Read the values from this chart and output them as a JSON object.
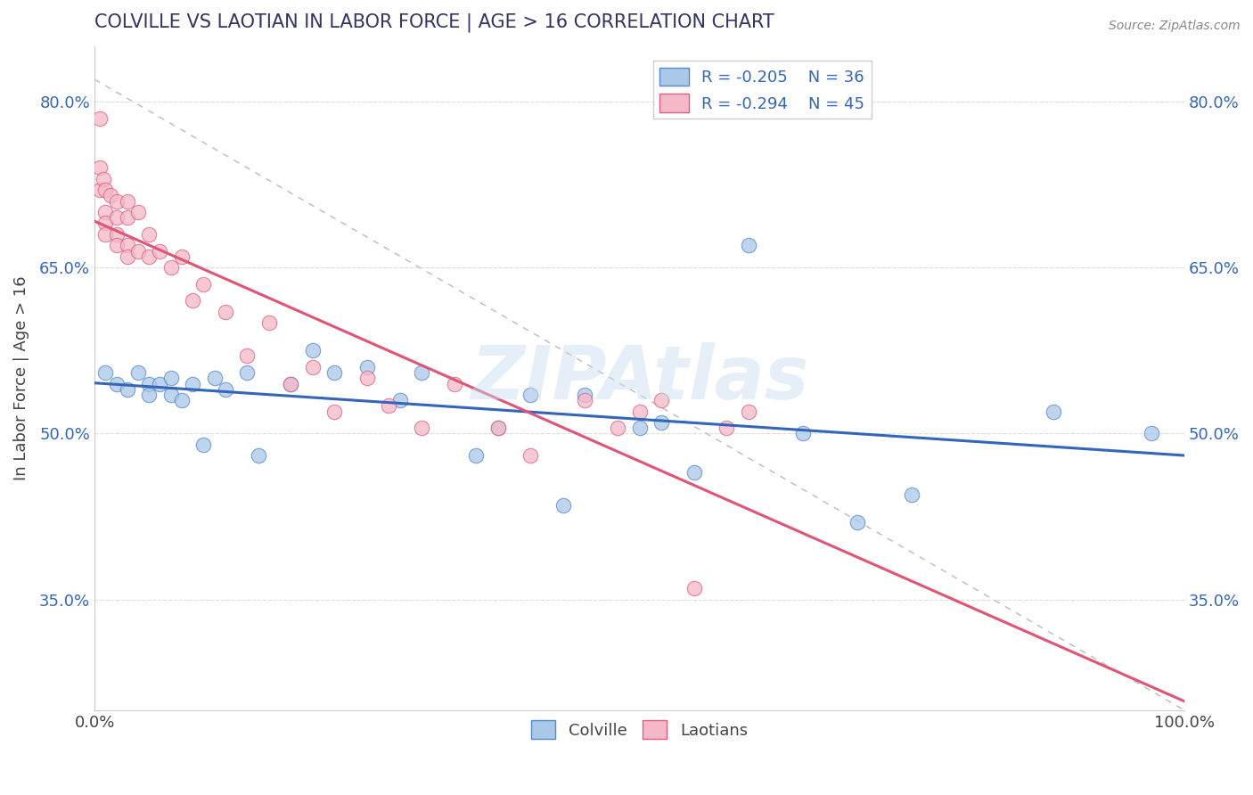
{
  "title": "COLVILLE VS LAOTIAN IN LABOR FORCE | AGE > 16 CORRELATION CHART",
  "source_text": "Source: ZipAtlas.com",
  "ylabel": "In Labor Force | Age > 16",
  "xlim": [
    0.0,
    1.0
  ],
  "ylim": [
    0.25,
    0.85
  ],
  "yticks": [
    0.35,
    0.5,
    0.65,
    0.8
  ],
  "ytick_labels": [
    "35.0%",
    "50.0%",
    "65.0%",
    "80.0%"
  ],
  "xticks": [
    0.0,
    1.0
  ],
  "xtick_labels": [
    "0.0%",
    "100.0%"
  ],
  "colville_fill": "#aac8e8",
  "laotian_fill": "#f5b8c8",
  "colville_edge": "#5588cc",
  "laotian_edge": "#e06080",
  "colville_line_color": "#3366bb",
  "laotian_line_color": "#e05575",
  "legend_R_colville": "R = -0.205",
  "legend_N_colville": "N = 36",
  "legend_R_laotian": "R = -0.294",
  "legend_N_laotian": "N = 45",
  "watermark": "ZIPAtlas",
  "title_color": "#333366",
  "grid_color": "#dddddd",
  "ref_line_color": "#bbbbbb",
  "colville_x": [
    0.01,
    0.02,
    0.03,
    0.04,
    0.05,
    0.05,
    0.06,
    0.07,
    0.07,
    0.08,
    0.09,
    0.1,
    0.11,
    0.12,
    0.14,
    0.15,
    0.18,
    0.2,
    0.22,
    0.25,
    0.28,
    0.3,
    0.35,
    0.37,
    0.4,
    0.43,
    0.45,
    0.5,
    0.52,
    0.55,
    0.6,
    0.65,
    0.7,
    0.75,
    0.88,
    0.97
  ],
  "colville_y": [
    0.555,
    0.545,
    0.54,
    0.555,
    0.545,
    0.535,
    0.545,
    0.535,
    0.55,
    0.53,
    0.545,
    0.49,
    0.55,
    0.54,
    0.555,
    0.48,
    0.545,
    0.575,
    0.555,
    0.56,
    0.53,
    0.555,
    0.48,
    0.505,
    0.535,
    0.435,
    0.535,
    0.505,
    0.51,
    0.465,
    0.67,
    0.5,
    0.42,
    0.445,
    0.52,
    0.5
  ],
  "laotian_x": [
    0.005,
    0.005,
    0.005,
    0.008,
    0.01,
    0.01,
    0.01,
    0.01,
    0.015,
    0.02,
    0.02,
    0.02,
    0.02,
    0.03,
    0.03,
    0.03,
    0.03,
    0.04,
    0.04,
    0.05,
    0.05,
    0.06,
    0.07,
    0.08,
    0.09,
    0.1,
    0.12,
    0.14,
    0.16,
    0.18,
    0.2,
    0.22,
    0.25,
    0.27,
    0.3,
    0.33,
    0.37,
    0.4,
    0.45,
    0.48,
    0.5,
    0.52,
    0.55,
    0.58,
    0.6
  ],
  "laotian_y": [
    0.785,
    0.74,
    0.72,
    0.73,
    0.72,
    0.7,
    0.69,
    0.68,
    0.715,
    0.71,
    0.695,
    0.68,
    0.67,
    0.71,
    0.695,
    0.67,
    0.66,
    0.7,
    0.665,
    0.68,
    0.66,
    0.665,
    0.65,
    0.66,
    0.62,
    0.635,
    0.61,
    0.57,
    0.6,
    0.545,
    0.56,
    0.52,
    0.55,
    0.525,
    0.505,
    0.545,
    0.505,
    0.48,
    0.53,
    0.505,
    0.52,
    0.53,
    0.36,
    0.505,
    0.52
  ]
}
